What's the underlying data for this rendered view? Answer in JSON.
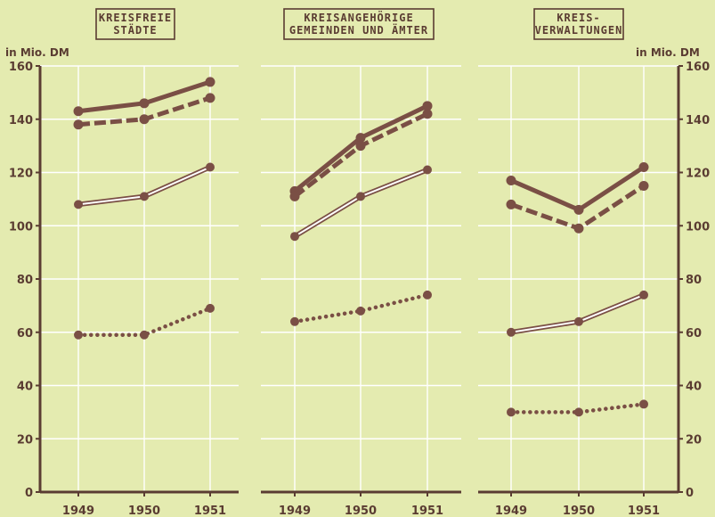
{
  "colors": {
    "background": "#e4ebb0",
    "ink": "#7a4f45",
    "grid": "#ffffff",
    "axis": "#5a3c32"
  },
  "unit_label_left": "in Mio. DM",
  "unit_label_right": "in Mio. DM",
  "chart_data": [
    {
      "type": "line",
      "title": [
        "KREISFREIE",
        "STÄDTE"
      ],
      "categories": [
        "1949",
        "1950",
        "1951"
      ],
      "ylim": [
        0,
        160
      ],
      "yticks": [
        0,
        20,
        40,
        60,
        80,
        100,
        120,
        140,
        160
      ],
      "grid": true,
      "series": [
        {
          "style": "thick-solid",
          "values": [
            143,
            146,
            154
          ]
        },
        {
          "style": "thick-dashed",
          "values": [
            138,
            140,
            148
          ]
        },
        {
          "style": "double-line",
          "values": [
            108,
            111,
            122
          ]
        },
        {
          "style": "dotted",
          "values": [
            59,
            59,
            69
          ]
        }
      ]
    },
    {
      "type": "line",
      "title": [
        "KREISANGEHÖRIGE",
        "GEMEINDEN UND ÄMTER"
      ],
      "categories": [
        "1949",
        "1950",
        "1951"
      ],
      "ylim": [
        0,
        160
      ],
      "yticks": [
        0,
        20,
        40,
        60,
        80,
        100,
        120,
        140,
        160
      ],
      "grid": true,
      "series": [
        {
          "style": "thick-solid",
          "values": [
            113,
            133,
            145
          ]
        },
        {
          "style": "thick-dashed",
          "values": [
            111,
            130,
            142
          ]
        },
        {
          "style": "double-line",
          "values": [
            96,
            111,
            121
          ]
        },
        {
          "style": "dotted",
          "values": [
            64,
            68,
            74
          ]
        }
      ]
    },
    {
      "type": "line",
      "title": [
        "KREIS-",
        "VERWALTUNGEN"
      ],
      "categories": [
        "1949",
        "1950",
        "1951"
      ],
      "ylim": [
        0,
        160
      ],
      "yticks": [
        0,
        20,
        40,
        60,
        80,
        100,
        120,
        140,
        160
      ],
      "grid": true,
      "series": [
        {
          "style": "thick-solid",
          "values": [
            117,
            106,
            122
          ]
        },
        {
          "style": "thick-dashed",
          "values": [
            108,
            99,
            115
          ]
        },
        {
          "style": "double-line",
          "values": [
            60,
            64,
            74
          ]
        },
        {
          "style": "dotted",
          "values": [
            30,
            30,
            33
          ]
        }
      ]
    }
  ]
}
